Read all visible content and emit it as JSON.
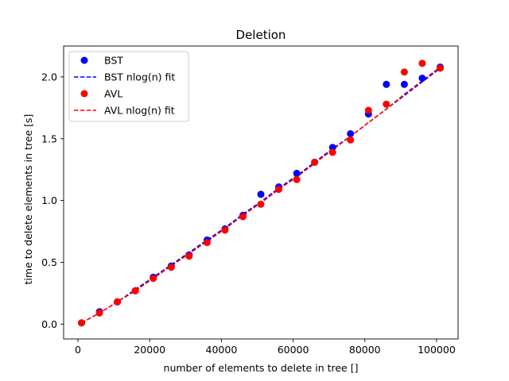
{
  "chart_data": {
    "type": "scatter",
    "title": "Deletion",
    "xlabel": "number of elements to delete in tree []",
    "ylabel": "time to delete elements in tree [s]",
    "xlim": [
      -4000,
      106000
    ],
    "ylim": [
      -0.12,
      2.25
    ],
    "xticks": [
      0,
      20000,
      40000,
      60000,
      80000,
      100000
    ],
    "yticks": [
      0.0,
      0.5,
      1.0,
      1.5,
      2.0
    ],
    "xtick_labels": [
      "0",
      "20000",
      "40000",
      "60000",
      "80000",
      "100000"
    ],
    "ytick_labels": [
      "0.0",
      "0.5",
      "1.0",
      "1.5",
      "2.0"
    ],
    "grid": false,
    "legend_position": "top-left",
    "series": [
      {
        "name": "BST",
        "kind": "scatter",
        "color": "#0000ff",
        "x": [
          1000,
          6000,
          11000,
          16000,
          21000,
          26000,
          31000,
          36000,
          41000,
          46000,
          51000,
          56000,
          61000,
          66000,
          71000,
          76000,
          81000,
          86000,
          91000,
          96000,
          101000
        ],
        "y": [
          0.01,
          0.1,
          0.18,
          0.27,
          0.38,
          0.47,
          0.56,
          0.68,
          0.77,
          0.88,
          1.05,
          1.11,
          1.22,
          1.31,
          1.43,
          1.54,
          1.7,
          1.94,
          1.94,
          1.99,
          2.08
        ]
      },
      {
        "name": "BST nlog(n) fit",
        "kind": "line",
        "style": "dashed",
        "color": "#0000ff",
        "x": [
          1000,
          6000,
          11000,
          16000,
          21000,
          26000,
          31000,
          36000,
          41000,
          46000,
          51000,
          56000,
          61000,
          66000,
          71000,
          76000,
          81000,
          86000,
          91000,
          96000,
          101000
        ],
        "y": [
          0.01,
          0.09,
          0.18,
          0.28,
          0.38,
          0.48,
          0.58,
          0.68,
          0.78,
          0.89,
          0.99,
          1.1,
          1.2,
          1.31,
          1.42,
          1.52,
          1.63,
          1.74,
          1.85,
          1.96,
          2.07
        ]
      },
      {
        "name": "AVL",
        "kind": "scatter",
        "color": "#ff0000",
        "x": [
          1000,
          6000,
          11000,
          16000,
          21000,
          26000,
          31000,
          36000,
          41000,
          46000,
          51000,
          56000,
          61000,
          66000,
          71000,
          76000,
          81000,
          86000,
          91000,
          96000,
          101000
        ],
        "y": [
          0.01,
          0.09,
          0.18,
          0.27,
          0.37,
          0.46,
          0.55,
          0.66,
          0.76,
          0.87,
          0.97,
          1.09,
          1.17,
          1.31,
          1.39,
          1.49,
          1.73,
          1.78,
          2.04,
          2.11,
          2.07
        ]
      },
      {
        "name": "AVL nlog(n) fit",
        "kind": "line",
        "style": "dashed",
        "color": "#ff0000",
        "x": [
          1000,
          6000,
          11000,
          16000,
          21000,
          26000,
          31000,
          36000,
          41000,
          46000,
          51000,
          56000,
          61000,
          66000,
          71000,
          76000,
          81000,
          86000,
          91000,
          96000,
          101000
        ],
        "y": [
          0.01,
          0.09,
          0.18,
          0.27,
          0.37,
          0.47,
          0.57,
          0.67,
          0.77,
          0.88,
          0.98,
          1.09,
          1.19,
          1.3,
          1.41,
          1.52,
          1.63,
          1.74,
          1.86,
          1.97,
          2.08
        ]
      }
    ]
  }
}
